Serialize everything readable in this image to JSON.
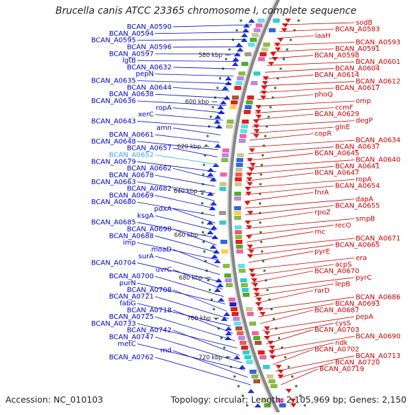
{
  "title": "Brucella canis ATCC 23365 chromosome I, complete sequence",
  "footer": {
    "accession": "Accession: NC_010103",
    "topology": "Topology: circular; Length: 2,105,969 bp; Genes: 2,150"
  },
  "colors": {
    "left_label": "#0000cc",
    "highlight_label": "#33aaee",
    "right_label": "#cc0000",
    "tick": "#1a7a1a",
    "backbone": "#888888"
  },
  "ticks": [
    "580 kbp",
    "600 kbp",
    "620 kbp",
    "640 kbp",
    "660 kbp",
    "680 kbp",
    "700 kbp",
    "720 kbp"
  ],
  "left_genes": [
    {
      "label": "BCAN_A0590"
    },
    {
      "label": "BCAN_A0594"
    },
    {
      "label": "BCAN_A0595"
    },
    {
      "label": "BCAN_A0596"
    },
    {
      "label": "BCAN_A0597"
    },
    {
      "label": "lgtB"
    },
    {
      "label": "BCAN_A0632"
    },
    {
      "label": "pepN"
    },
    {
      "label": "BCAN_A0635"
    },
    {
      "label": "BCAN_A0644"
    },
    {
      "label": "BCAN_A0638"
    },
    {
      "label": "BCAN_A0636"
    },
    {
      "label": "ropA"
    },
    {
      "label": "xerC"
    },
    {
      "label": "BCAN_A0643"
    },
    {
      "label": "amn"
    },
    {
      "label": "BCAN_A0661"
    },
    {
      "label": "BCAN_A0648"
    },
    {
      "label": "BCAN_A0657"
    },
    {
      "label": "BCAN_A0652",
      "highlight": true
    },
    {
      "label": "BCAN_A0679"
    },
    {
      "label": "BCAN_A0662"
    },
    {
      "label": "BCAN_A0678"
    },
    {
      "label": "BCAN_A0663"
    },
    {
      "label": "BCAN_A0682"
    },
    {
      "label": "BCAN_A0669"
    },
    {
      "label": "BCAN_A0680"
    },
    {
      "label": "pdxA"
    },
    {
      "label": "ksgA"
    },
    {
      "label": "BCAN_A0685"
    },
    {
      "label": "BCAN_A0698"
    },
    {
      "label": "BCAN_A0688"
    },
    {
      "label": "imp"
    },
    {
      "label": "moaD"
    },
    {
      "label": "surA"
    },
    {
      "label": "BCAN_A0704"
    },
    {
      "label": "uvrC"
    },
    {
      "label": "BCAN_A0700"
    },
    {
      "label": "purN"
    },
    {
      "label": "BCAN_A0708"
    },
    {
      "label": "BCAN_A0721"
    },
    {
      "label": "fabG"
    },
    {
      "label": "BCAN_A0718"
    },
    {
      "label": "BCAN_A0725"
    },
    {
      "label": "BCAN_A0733"
    },
    {
      "label": "BCAN_A0742"
    },
    {
      "label": "BCAN_A0747"
    },
    {
      "label": "metC"
    },
    {
      "label": "rnd"
    },
    {
      "label": "BCAN_A0762"
    }
  ],
  "right_genes": [
    {
      "label": "sodB"
    },
    {
      "label": "BCAN_A0583"
    },
    {
      "label": "iaaH"
    },
    {
      "label": "BCAN_A0593"
    },
    {
      "label": "BCAN_A0591"
    },
    {
      "label": "BCAN_A0598"
    },
    {
      "label": "BCAN_A0601"
    },
    {
      "label": "BCAN_A0604"
    },
    {
      "label": "BCAN_A0614"
    },
    {
      "label": "BCAN_A0612"
    },
    {
      "label": "BCAN_A0617"
    },
    {
      "label": "phoQ"
    },
    {
      "label": "omp"
    },
    {
      "label": "ccmF"
    },
    {
      "label": "BCAN_A0629"
    },
    {
      "label": "degP"
    },
    {
      "label": "glnE"
    },
    {
      "label": "copR"
    },
    {
      "label": "BCAN_A0634"
    },
    {
      "label": "BCAN_A0637"
    },
    {
      "label": "BCAN_A0645"
    },
    {
      "label": "BCAN_A0640"
    },
    {
      "label": "BCAN_A0641"
    },
    {
      "label": "BCAN_A0647"
    },
    {
      "label": "ropA"
    },
    {
      "label": "BCAN_A0654"
    },
    {
      "label": "fnrA"
    },
    {
      "label": "dapA"
    },
    {
      "label": "BCAN_A0655"
    },
    {
      "label": "rpoZ"
    },
    {
      "label": "smpB"
    },
    {
      "label": "recO"
    },
    {
      "label": "rnc"
    },
    {
      "label": "BCAN_A0671"
    },
    {
      "label": "BCAN_A0665"
    },
    {
      "label": "pyrE"
    },
    {
      "label": "era"
    },
    {
      "label": "acpS"
    },
    {
      "label": "BCAN_A0670"
    },
    {
      "label": "pyrC"
    },
    {
      "label": "lepB"
    },
    {
      "label": "rarD"
    },
    {
      "label": "BCAN_A0686"
    },
    {
      "label": "BCAN_A0693"
    },
    {
      "label": "BCAN_A0687"
    },
    {
      "label": "pepA"
    },
    {
      "label": "cysS"
    },
    {
      "label": "BCAN_A0703"
    },
    {
      "label": "BCAN_A0690"
    },
    {
      "label": "ndk"
    },
    {
      "label": "BCAN_A0702"
    },
    {
      "label": "BCAN_A0713"
    },
    {
      "label": "BCAN_A0720"
    },
    {
      "label": "BCAN_A0719"
    }
  ]
}
